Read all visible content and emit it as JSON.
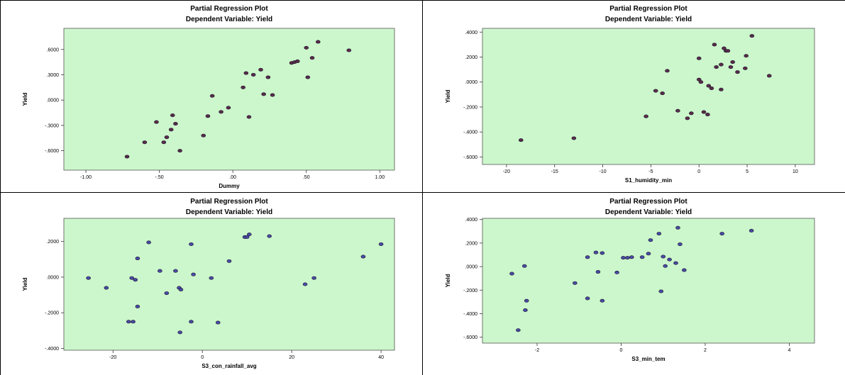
{
  "chart_data": [
    {
      "type": "scatter",
      "title": "Partial Regression Plot",
      "subtitle": "Dependent Variable: Yield",
      "xlabel": "Dummy",
      "ylabel": "Yield",
      "xlim": [
        -1.15,
        1.1
      ],
      "ylim": [
        -0.83,
        0.85
      ],
      "xticks": [
        -1.0,
        -0.5,
        0.0,
        0.5,
        1.0
      ],
      "xtick_labels": [
        "-1.00",
        "-.50",
        ".00",
        ".50",
        "1.00"
      ],
      "yticks": [
        -0.6,
        -0.3,
        0.0,
        0.3,
        0.6
      ],
      "ytick_labels": [
        "-.6000",
        "-.3000",
        ".0000",
        ".3000",
        ".6000"
      ],
      "grid": false,
      "marker_color": "#5a2a4a",
      "background_color": "#ccf7cc",
      "points": [
        [
          -0.72,
          -0.67
        ],
        [
          -0.6,
          -0.5
        ],
        [
          -0.52,
          -0.26
        ],
        [
          -0.47,
          -0.5
        ],
        [
          -0.45,
          -0.44
        ],
        [
          -0.42,
          -0.35
        ],
        [
          -0.41,
          -0.18
        ],
        [
          -0.39,
          -0.28
        ],
        [
          -0.36,
          -0.6
        ],
        [
          -0.2,
          -0.42
        ],
        [
          -0.17,
          -0.19
        ],
        [
          -0.14,
          0.05
        ],
        [
          -0.08,
          -0.14
        ],
        [
          -0.03,
          -0.09
        ],
        [
          0.07,
          0.15
        ],
        [
          0.09,
          0.32
        ],
        [
          0.11,
          -0.2
        ],
        [
          0.14,
          0.3
        ],
        [
          0.19,
          0.36
        ],
        [
          0.21,
          0.07
        ],
        [
          0.24,
          0.27
        ],
        [
          0.27,
          0.06
        ],
        [
          0.4,
          0.44
        ],
        [
          0.42,
          0.45
        ],
        [
          0.44,
          0.46
        ],
        [
          0.5,
          0.62
        ],
        [
          0.51,
          0.27
        ],
        [
          0.54,
          0.5
        ],
        [
          0.58,
          0.69
        ],
        [
          0.79,
          0.59
        ]
      ]
    },
    {
      "type": "scatter",
      "title": "Partial Regression Plot",
      "subtitle": "Dependent Variable: Yield",
      "xlabel": "S1_humidity_min",
      "ylabel": "Yield",
      "xlim": [
        -22.5,
        12
      ],
      "ylim": [
        -0.66,
        0.43
      ],
      "xticks": [
        -20,
        -15,
        -10,
        -5,
        0,
        5,
        10
      ],
      "xtick_labels": [
        "-20",
        "-15",
        "-10",
        "-5",
        "0",
        "5",
        "10"
      ],
      "yticks": [
        -0.6,
        -0.4,
        -0.2,
        0.0,
        0.2,
        0.4
      ],
      "ytick_labels": [
        "-.6000",
        "-.4000",
        "-.2000",
        ".0000",
        ".2000",
        ".4000"
      ],
      "grid": false,
      "marker_color": "#5a2a4a",
      "background_color": "#ccf7cc",
      "points": [
        [
          -18.5,
          -0.465
        ],
        [
          -13,
          -0.45
        ],
        [
          -5.5,
          -0.275
        ],
        [
          -4.5,
          -0.07
        ],
        [
          -3.8,
          -0.09
        ],
        [
          -3.3,
          0.09
        ],
        [
          -2.2,
          -0.23
        ],
        [
          -1.2,
          -0.29
        ],
        [
          -0.8,
          -0.25
        ],
        [
          0,
          0.19
        ],
        [
          0,
          0.02
        ],
        [
          0.2,
          0.0
        ],
        [
          0.5,
          -0.24
        ],
        [
          0.9,
          -0.26
        ],
        [
          1.0,
          -0.03
        ],
        [
          1.3,
          -0.05
        ],
        [
          1.6,
          0.3
        ],
        [
          1.8,
          0.12
        ],
        [
          2.3,
          -0.06
        ],
        [
          2.3,
          0.14
        ],
        [
          2.6,
          0.27
        ],
        [
          2.8,
          0.25
        ],
        [
          3.0,
          0.25
        ],
        [
          3.3,
          0.12
        ],
        [
          3.5,
          0.16
        ],
        [
          4.0,
          0.08
        ],
        [
          4.8,
          0.11
        ],
        [
          4.9,
          0.21
        ],
        [
          5.5,
          0.37
        ],
        [
          7.3,
          0.05
        ]
      ]
    },
    {
      "type": "scatter",
      "title": "Partial Regression Plot",
      "subtitle": "Dependent Variable: Yield",
      "xlabel": "S3_con_rainfall_avg",
      "ylabel": "Yield",
      "xlim": [
        -31,
        43
      ],
      "ylim": [
        -0.41,
        0.33
      ],
      "xticks": [
        -20,
        0,
        20,
        40
      ],
      "xtick_labels": [
        "-20",
        "0",
        "20",
        "40"
      ],
      "yticks": [
        -0.4,
        -0.2,
        0.0,
        0.2
      ],
      "ytick_labels": [
        "-.4000",
        "-.2000",
        ".0000",
        ".2000"
      ],
      "grid": false,
      "marker_color": "#4a4aa8",
      "background_color": "#ccf7cc",
      "points": [
        [
          -25.5,
          -0.005
        ],
        [
          -21.5,
          -0.06
        ],
        [
          -16.5,
          -0.25
        ],
        [
          -15.8,
          -0.005
        ],
        [
          -15.5,
          -0.25
        ],
        [
          -15,
          -0.015
        ],
        [
          -14.5,
          0.105
        ],
        [
          -14.5,
          -0.165
        ],
        [
          -12,
          0.195
        ],
        [
          -9.5,
          0.035
        ],
        [
          -8,
          -0.09
        ],
        [
          -6,
          0.035
        ],
        [
          -5.2,
          -0.06
        ],
        [
          -5,
          -0.31
        ],
        [
          -4.8,
          -0.07
        ],
        [
          -2.5,
          0.185
        ],
        [
          -2.5,
          -0.25
        ],
        [
          -2,
          0.015
        ],
        [
          2,
          -0.005
        ],
        [
          3.5,
          -0.255
        ],
        [
          6,
          0.09
        ],
        [
          9.5,
          0.225
        ],
        [
          10,
          0.225
        ],
        [
          10.5,
          0.24
        ],
        [
          15,
          0.23
        ],
        [
          23,
          -0.04
        ],
        [
          25,
          -0.005
        ],
        [
          36,
          0.115
        ],
        [
          40,
          0.185
        ]
      ]
    },
    {
      "type": "scatter",
      "title": "Partial Regression Plot",
      "subtitle": "Dependent Variable: Yield",
      "xlabel": "S3_min_tem",
      "ylabel": "Yield",
      "xlim": [
        -3.3,
        4.6
      ],
      "ylim": [
        -0.65,
        0.41
      ],
      "xticks": [
        -2,
        0,
        2,
        4
      ],
      "xtick_labels": [
        "-2",
        "0",
        "2",
        "4"
      ],
      "yticks": [
        -0.6,
        -0.4,
        -0.2,
        0.0,
        0.2,
        0.4
      ],
      "ytick_labels": [
        "-.6000",
        "-.4000",
        "-.2000",
        ".0000",
        ".2000",
        ".4000"
      ],
      "grid": false,
      "marker_color": "#4a4aa8",
      "background_color": "#ccf7cc",
      "points": [
        [
          -2.6,
          -0.06
        ],
        [
          -2.45,
          -0.54
        ],
        [
          -2.3,
          0.005
        ],
        [
          -2.28,
          -0.37
        ],
        [
          -2.25,
          -0.29
        ],
        [
          -1.1,
          -0.14
        ],
        [
          -0.8,
          0.08
        ],
        [
          -0.8,
          -0.27
        ],
        [
          -0.6,
          0.12
        ],
        [
          -0.55,
          -0.045
        ],
        [
          -0.45,
          0.115
        ],
        [
          -0.45,
          -0.29
        ],
        [
          -0.1,
          -0.05
        ],
        [
          0.05,
          0.075
        ],
        [
          0.15,
          0.075
        ],
        [
          0.25,
          0.08
        ],
        [
          0.5,
          0.08
        ],
        [
          0.65,
          0.11
        ],
        [
          0.7,
          0.225
        ],
        [
          0.9,
          0.28
        ],
        [
          0.95,
          -0.21
        ],
        [
          1.0,
          0.085
        ],
        [
          1.05,
          0.005
        ],
        [
          1.15,
          0.06
        ],
        [
          1.3,
          0.03
        ],
        [
          1.35,
          0.33
        ],
        [
          1.4,
          0.19
        ],
        [
          1.5,
          -0.03
        ],
        [
          2.4,
          0.28
        ],
        [
          3.1,
          0.305
        ]
      ]
    }
  ]
}
